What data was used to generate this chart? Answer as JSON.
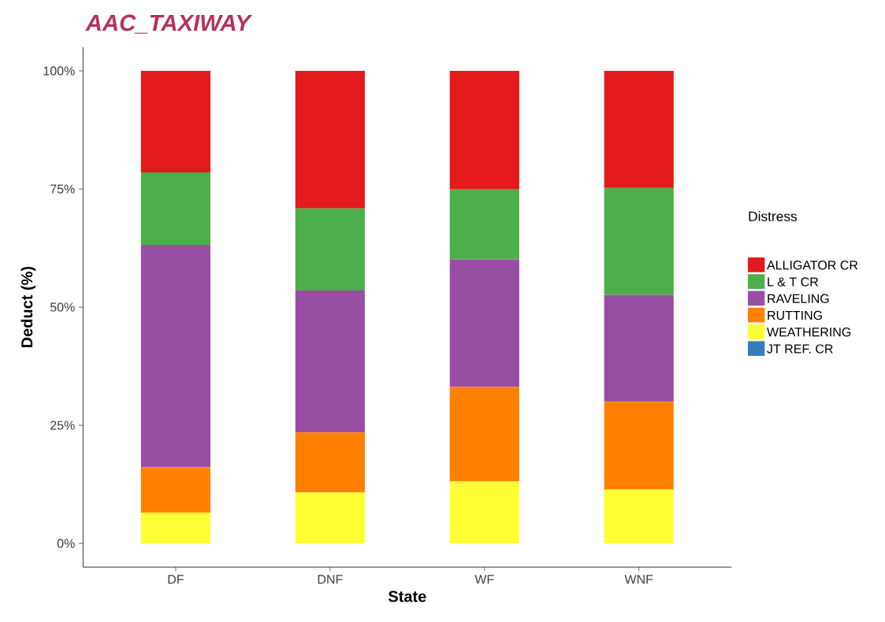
{
  "chart_data": {
    "type": "bar",
    "title": "AAC_TAXIWAY",
    "xlabel": "State",
    "ylabel": "Deduct (%)",
    "legend_title": "Distress",
    "stacked": true,
    "legend": "right",
    "categories": [
      "DF",
      "DNF",
      "WF",
      "WNF"
    ],
    "ylim": [
      -5,
      105
    ],
    "yticks": [
      {
        "value": 0,
        "label": "0%"
      },
      {
        "value": 25,
        "label": "25%"
      },
      {
        "value": 50,
        "label": "50%"
      },
      {
        "value": 75,
        "label": "75%"
      },
      {
        "value": 100,
        "label": "100%"
      }
    ],
    "series": [
      {
        "name": "JT REF. CR",
        "color": "#377eb8",
        "values": [
          0,
          0,
          0,
          0
        ]
      },
      {
        "name": "WEATHERING",
        "color": "#ffff33",
        "values": [
          6.5,
          10.8,
          13.1,
          11.4
        ]
      },
      {
        "name": "RUTTING",
        "color": "#ff7f00",
        "values": [
          9.6,
          12.7,
          20.0,
          18.6
        ]
      },
      {
        "name": "RAVELING",
        "color": "#984ea3",
        "values": [
          47.1,
          30.0,
          27.0,
          22.6
        ]
      },
      {
        "name": "L & T CR",
        "color": "#4daf4a",
        "values": [
          15.3,
          17.4,
          14.9,
          22.6
        ]
      },
      {
        "name": "ALLIGATOR CR",
        "color": "#e41a1c",
        "values": [
          21.5,
          29.1,
          25.0,
          24.8
        ]
      }
    ]
  }
}
